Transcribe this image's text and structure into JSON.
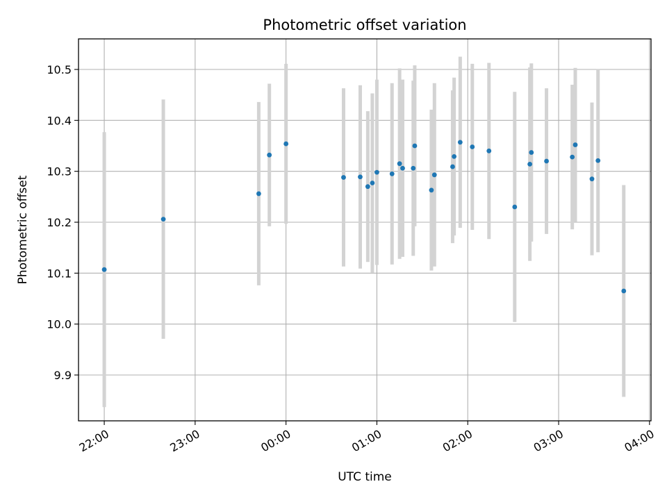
{
  "chart_data": {
    "type": "scatter",
    "title": "Photometric offset variation",
    "xlabel": "UTC time",
    "ylabel": "Photometric offset",
    "xlim": [
      "21:43",
      "04:01"
    ],
    "ylim": [
      9.81,
      10.56
    ],
    "grid": true,
    "colors": {
      "point": "#1f77b4",
      "errorbar": "#d3d3d3"
    },
    "x_ticks": [
      "22:00",
      "23:00",
      "00:00",
      "01:00",
      "02:00",
      "03:00",
      "04:00"
    ],
    "y_ticks": [
      "9.9",
      "10.0",
      "10.1",
      "10.2",
      "10.3",
      "10.4",
      "10.5"
    ],
    "points": [
      {
        "x": "22:00",
        "y": 10.107,
        "err": 0.27
      },
      {
        "x": "22:39",
        "y": 10.206,
        "err": 0.235
      },
      {
        "x": "23:42",
        "y": 10.256,
        "err": 0.18
      },
      {
        "x": "23:49",
        "y": 10.332,
        "err": 0.14
      },
      {
        "x": "00:00",
        "y": 10.354,
        "err": 0.157
      },
      {
        "x": "00:38",
        "y": 10.288,
        "err": 0.175
      },
      {
        "x": "00:49",
        "y": 10.289,
        "err": 0.18
      },
      {
        "x": "00:54",
        "y": 10.27,
        "err": 0.148
      },
      {
        "x": "00:57",
        "y": 10.277,
        "err": 0.176
      },
      {
        "x": "01:00",
        "y": 10.298,
        "err": 0.182
      },
      {
        "x": "01:10",
        "y": 10.295,
        "err": 0.178
      },
      {
        "x": "01:15",
        "y": 10.315,
        "err": 0.187
      },
      {
        "x": "01:17",
        "y": 10.306,
        "err": 0.174
      },
      {
        "x": "01:24",
        "y": 10.306,
        "err": 0.172
      },
      {
        "x": "01:25",
        "y": 10.35,
        "err": 0.158
      },
      {
        "x": "01:36",
        "y": 10.263,
        "err": 0.158
      },
      {
        "x": "01:38",
        "y": 10.293,
        "err": 0.18
      },
      {
        "x": "01:50",
        "y": 10.309,
        "err": 0.15
      },
      {
        "x": "01:51",
        "y": 10.329,
        "err": 0.155
      },
      {
        "x": "01:55",
        "y": 10.357,
        "err": 0.168
      },
      {
        "x": "02:03",
        "y": 10.348,
        "err": 0.163
      },
      {
        "x": "02:14",
        "y": 10.34,
        "err": 0.173
      },
      {
        "x": "02:31",
        "y": 10.23,
        "err": 0.226
      },
      {
        "x": "02:41",
        "y": 10.314,
        "err": 0.19
      },
      {
        "x": "02:42",
        "y": 10.337,
        "err": 0.175
      },
      {
        "x": "02:52",
        "y": 10.32,
        "err": 0.143
      },
      {
        "x": "03:09",
        "y": 10.328,
        "err": 0.142
      },
      {
        "x": "03:11",
        "y": 10.352,
        "err": 0.151
      },
      {
        "x": "03:22",
        "y": 10.285,
        "err": 0.15
      },
      {
        "x": "03:26",
        "y": 10.321,
        "err": 0.18
      },
      {
        "x": "03:43",
        "y": 10.065,
        "err": 0.208
      }
    ]
  }
}
